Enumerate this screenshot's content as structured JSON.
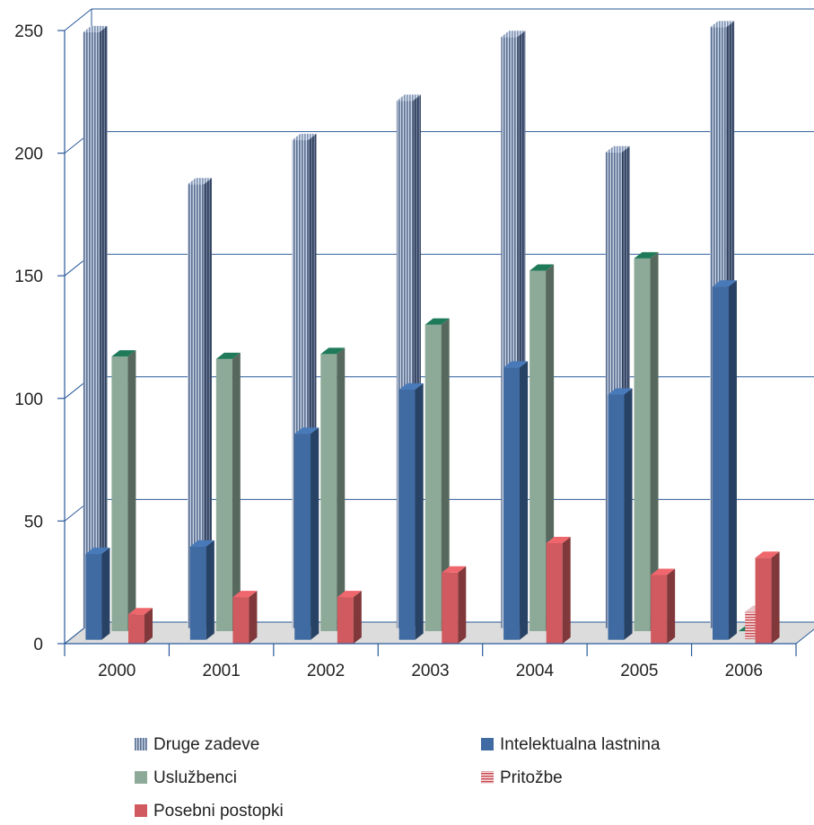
{
  "chart_data": {
    "type": "bar",
    "title": "",
    "xlabel": "",
    "ylabel": "",
    "ylim": [
      0,
      250
    ],
    "yticks": [
      0,
      50,
      100,
      150,
      200,
      250
    ],
    "grid": true,
    "legend_position": "bottom",
    "categories": [
      "2000",
      "2001",
      "2002",
      "2003",
      "2004",
      "2005",
      "2006"
    ],
    "series": [
      {
        "name": "Druge zadeve",
        "key": "druge",
        "color": "#7f93b4",
        "values": [
          243,
          181,
          199,
          215,
          241,
          194,
          245
        ]
      },
      {
        "name": "Intelektualna lastnina",
        "key": "intelektualna",
        "color": "#3f6aa2",
        "values": [
          35,
          38,
          84,
          102,
          111,
          100,
          144
        ]
      },
      {
        "name": "Uslužbenci",
        "key": "usluzbenci",
        "color": "#8daa98",
        "values": [
          112,
          111,
          113,
          125,
          147,
          152,
          0
        ]
      },
      {
        "name": "Pritožbe",
        "key": "pritozbe",
        "color": "#d99aa0",
        "values": [
          0,
          0,
          0,
          0,
          0,
          0,
          11
        ]
      },
      {
        "name": "Posebni postopki",
        "key": "posebni",
        "color": "#d05a5f",
        "values": [
          12,
          19,
          19,
          29,
          41,
          28,
          35
        ]
      }
    ]
  }
}
